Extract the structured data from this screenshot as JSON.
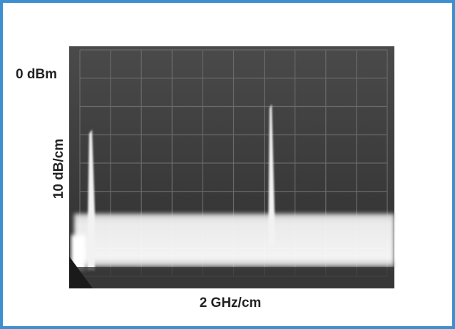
{
  "labels": {
    "reference_level": "0 dBm",
    "vertical_scale": "10 dB/cm",
    "horizontal_scale": "2 GHz/cm"
  }
}
